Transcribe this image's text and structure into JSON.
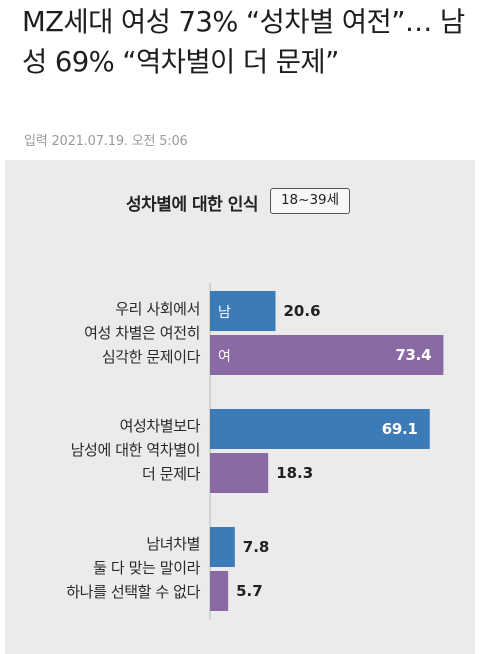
{
  "article": {
    "headline": "MZ세대 여성 73% “성차별 여전”… 남성 69% “역차별이 더 문제”",
    "meta": "입력 2021.07.19. 오전 5:06"
  },
  "chart_data": {
    "type": "bar",
    "orientation": "horizontal",
    "title": "성차별에 대한 인식",
    "badge": "18~39세",
    "legend_labels": {
      "male": "남",
      "female": "여"
    },
    "categories": [
      "우리 사회에서 여성 차별은 여전히 심각한 문제이다",
      "여성차별보다 남성에 대한 역차별이 더 문제다",
      "남녀차별 둘 다 맞는 말이라 하나를 선택할 수 없다"
    ],
    "category_lines": [
      [
        "우리 사회에서",
        "여성 차별은 여전히",
        "심각한 문제이다"
      ],
      [
        "여성차별보다",
        "남성에 대한 역차별이",
        "더 문제다"
      ],
      [
        "남녀차별",
        "둘 다 맞는 말이라",
        "하나를 선택할 수 없다"
      ]
    ],
    "series": [
      {
        "name": "남",
        "values": [
          20.6,
          69.1,
          7.8
        ]
      },
      {
        "name": "여",
        "values": [
          73.4,
          18.3,
          5.7
        ]
      }
    ],
    "value_labels": {
      "male": [
        "20.6",
        "69.1",
        "7.8"
      ],
      "female": [
        "73.4",
        "18.3",
        "5.7"
      ]
    },
    "colors": {
      "male": "#3b7bb7",
      "female": "#8a6aa4",
      "panel": "#ebebeb"
    },
    "xlim": [
      0,
      80
    ],
    "grid": false,
    "legend": "in-bar"
  }
}
